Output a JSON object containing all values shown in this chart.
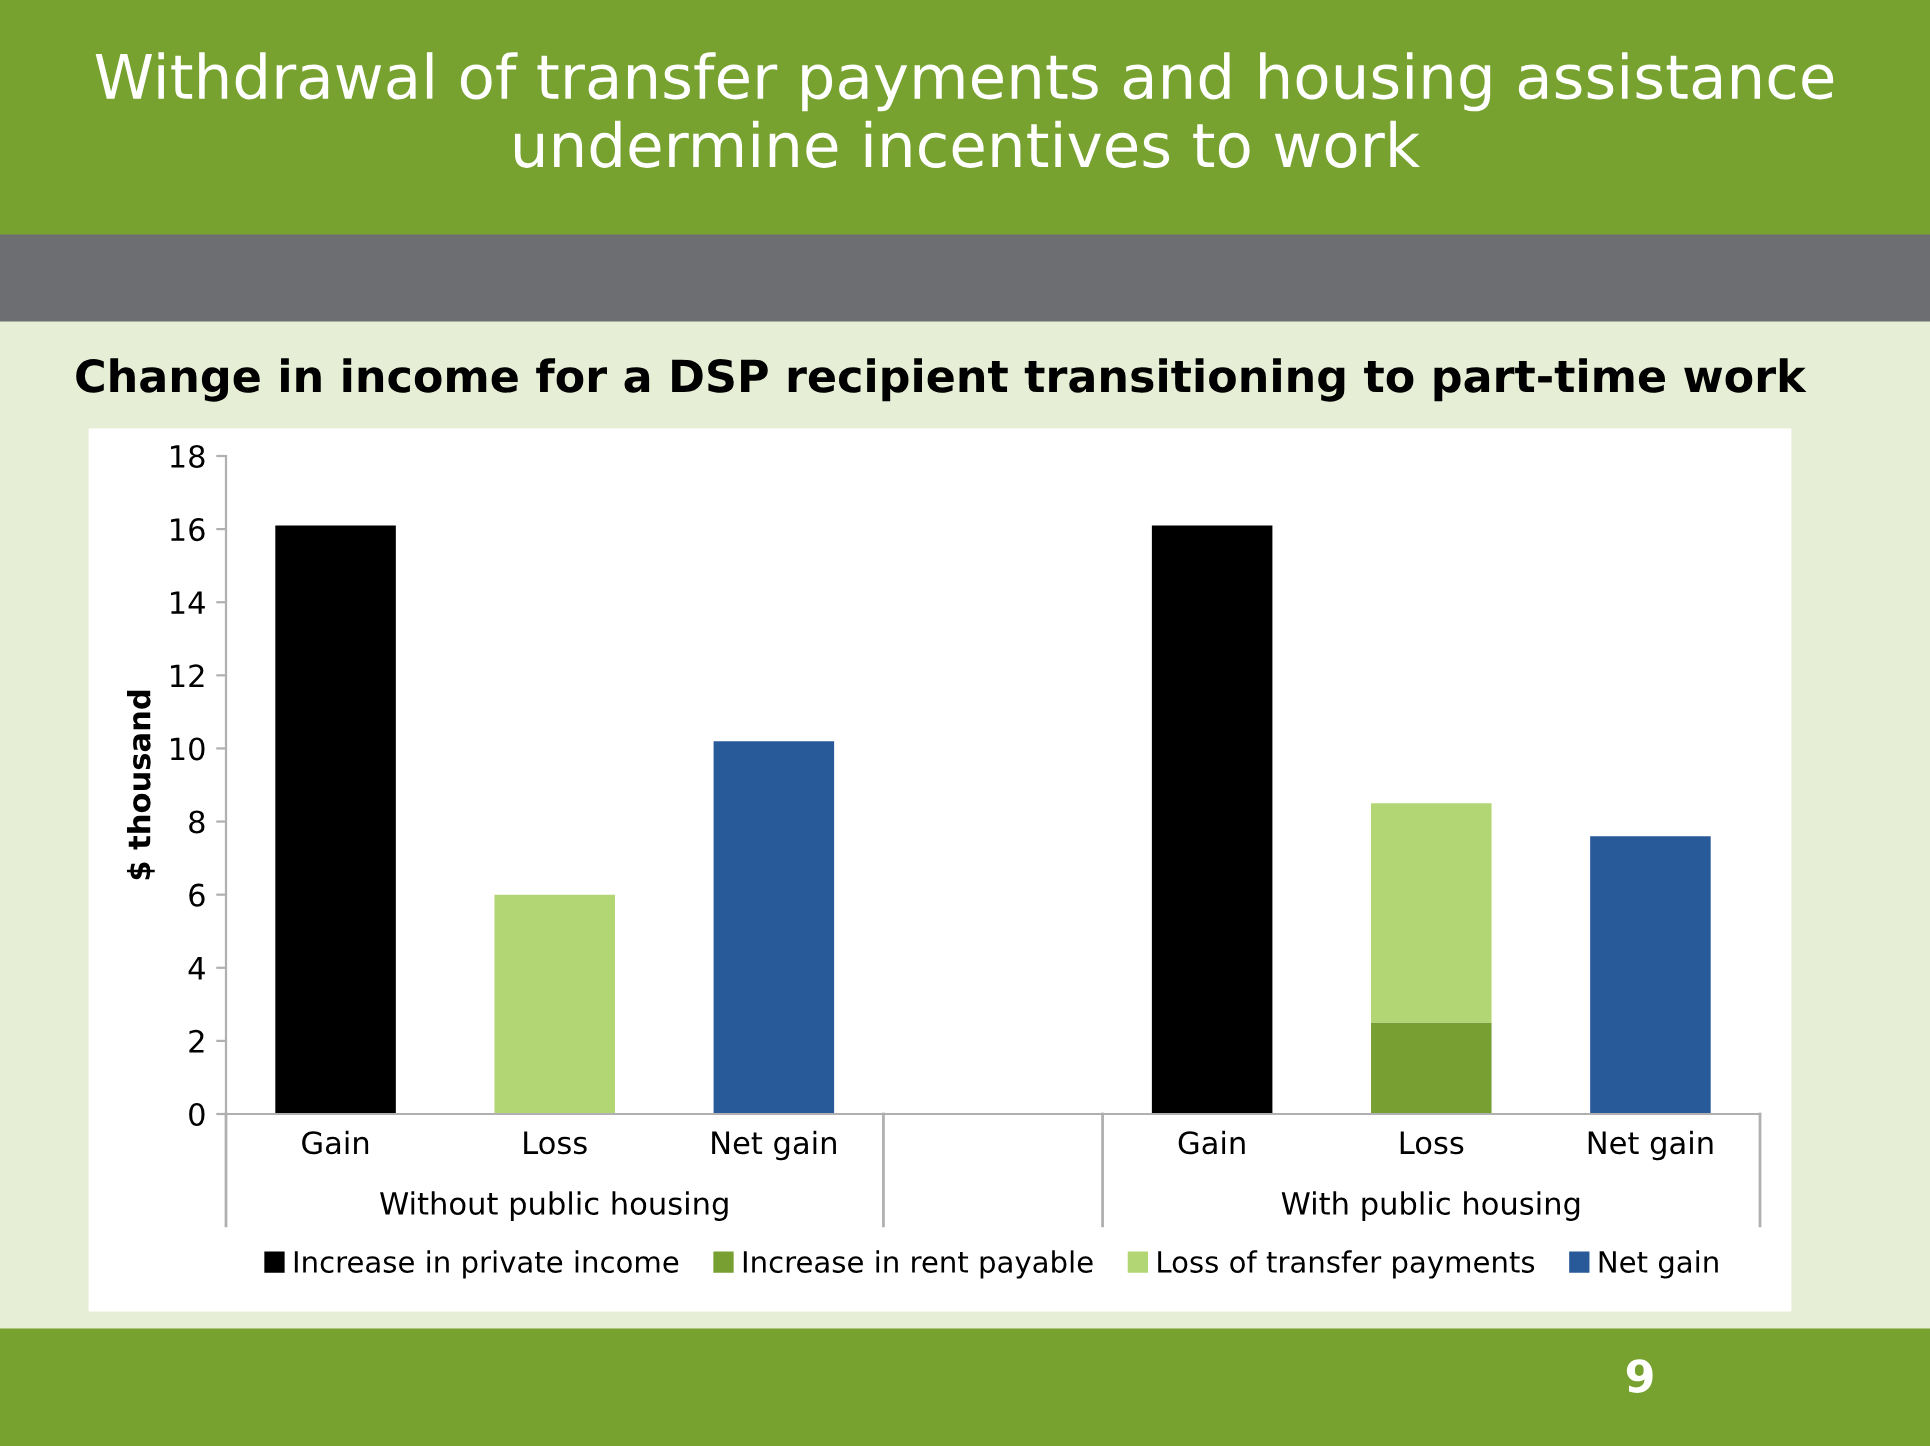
{
  "chart_data": {
    "type": "bar",
    "title": "Withdrawal of transfer payments and housing assistance undermine incentives to work",
    "subtitle": "Change in income for a DSP recipient transitioning to part-time work",
    "ylabel": "$ thousand",
    "categories": [
      "Gain",
      "Loss",
      "Net gain",
      null,
      "Gain",
      "Loss",
      "Net gain"
    ],
    "stacked": true,
    "series": [
      {
        "name": "Increase in private income",
        "color": "#000000",
        "values": [
          16.1,
          null,
          null,
          null,
          16.1,
          null,
          null
        ]
      },
      {
        "name": "Increase in rent payable",
        "color": "#779f32",
        "values": [
          null,
          null,
          null,
          null,
          null,
          2.5,
          null
        ]
      },
      {
        "name": "Loss of transfer payments",
        "color": "#b3d675",
        "values": [
          null,
          6.0,
          null,
          null,
          null,
          6.0,
          null
        ]
      },
      {
        "name": "Net gain",
        "color": "#285a99",
        "values": [
          null,
          null,
          10.2,
          null,
          null,
          null,
          7.6
        ]
      }
    ],
    "ylim": [
      0,
      18
    ],
    "yticks": [
      0,
      2,
      4,
      6,
      8,
      10,
      12,
      14,
      16,
      18
    ],
    "grid": false,
    "legend": "bottom",
    "annotations": [
      "Without public housing",
      "With public housing",
      "9"
    ]
  }
}
